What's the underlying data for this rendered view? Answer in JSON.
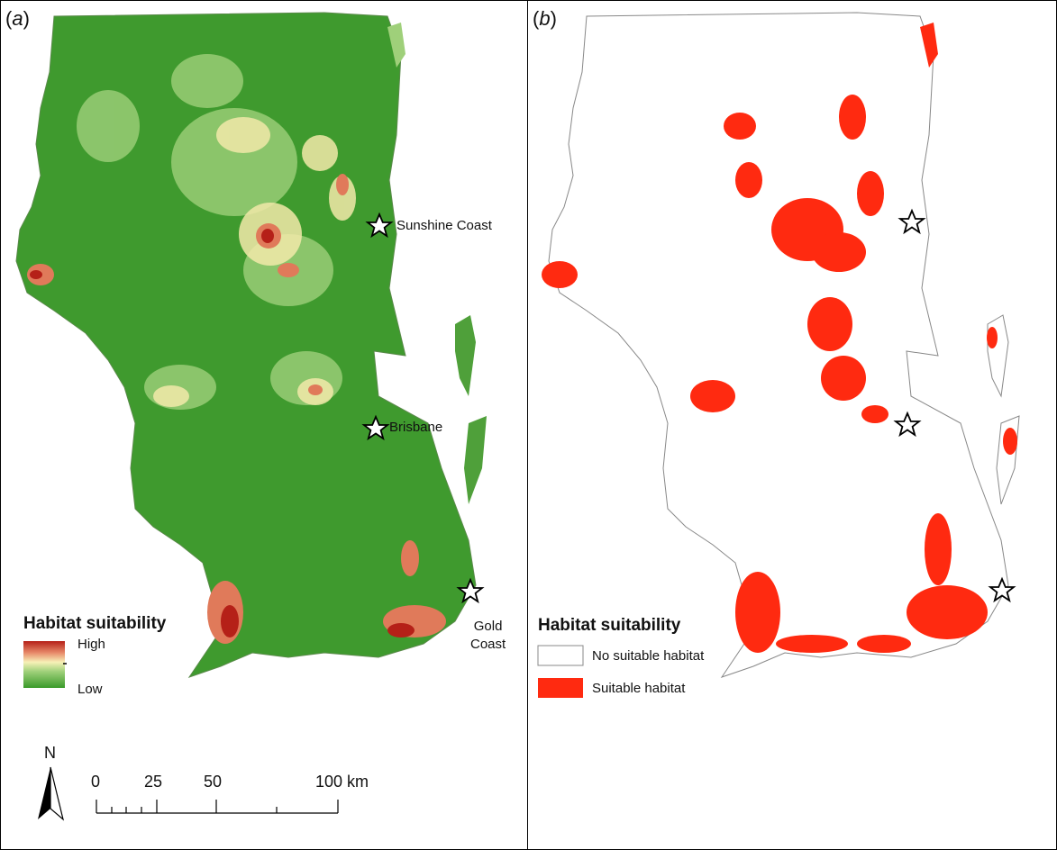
{
  "panels": {
    "a": {
      "label": "a",
      "legend": {
        "title": "Habitat suitability",
        "high": "High",
        "low": "Low"
      },
      "cities": [
        "Sunshine Coast",
        "Brisbane",
        "Gold\nCoast"
      ]
    },
    "b": {
      "label": "b",
      "legend": {
        "title": "Habitat suitability",
        "items": [
          "No suitable habitat",
          "Suitable habitat"
        ]
      }
    }
  },
  "scale_bar": {
    "ticks": [
      "0",
      "25",
      "50",
      "100 km"
    ]
  },
  "north_arrow": {
    "label": "N"
  },
  "colors": {
    "low": "#3a9a2a",
    "mid": "#f7f1b7",
    "high": "#b52018",
    "suitable": "#ff2a10",
    "unsuitable": "#ffffff",
    "outline": "#888888"
  }
}
